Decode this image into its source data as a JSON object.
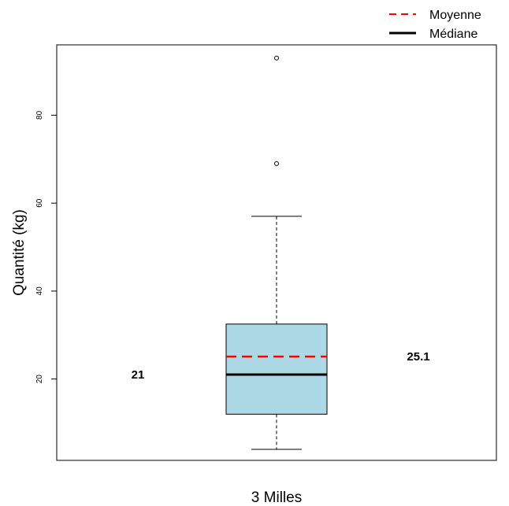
{
  "chart_data": {
    "type": "box",
    "title": "",
    "xlabel": "3 Milles",
    "ylabel": "Quantité (kg)",
    "ylim": [
      1.5,
      96
    ],
    "yticks": [
      20,
      40,
      60,
      80
    ],
    "box": {
      "whisker_low": 4,
      "q1": 12,
      "median": 21,
      "q3": 32.5,
      "whisker_high": 57,
      "outliers": [
        69,
        93
      ],
      "mean": 25.1,
      "fill": "#add8e6"
    },
    "annotations": {
      "median_label": "21",
      "mean_label": "25.1"
    },
    "legend": {
      "position": "top-right",
      "entries": [
        {
          "label": "Moyenne",
          "color": "#ff0000",
          "style": "dashed"
        },
        {
          "label": "Médiane",
          "color": "#000000",
          "style": "solid"
        }
      ]
    },
    "grid": false
  }
}
